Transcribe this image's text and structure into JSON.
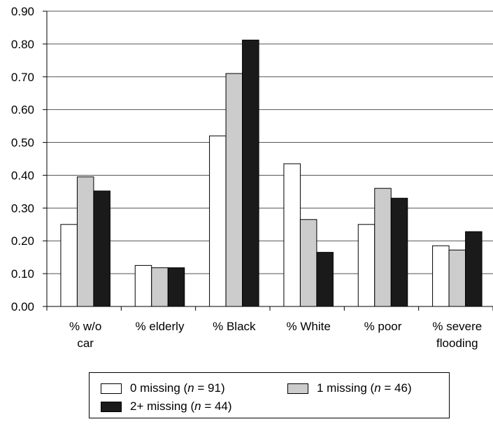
{
  "chart_data": {
    "type": "bar",
    "categories": [
      [
        "% w/o",
        "car"
      ],
      [
        "% elderly"
      ],
      [
        "% Black"
      ],
      [
        "% White"
      ],
      [
        "% poor"
      ],
      [
        "% severe",
        "flooding"
      ]
    ],
    "series": [
      {
        "name": "0 missing (n = 91)",
        "label_pre": "0 missing (",
        "label_n": "n",
        "label_post": " = 91)",
        "color": "#ffffff",
        "values": [
          0.25,
          0.125,
          0.52,
          0.435,
          0.25,
          0.185
        ]
      },
      {
        "name": "1 missing (n = 46)",
        "label_pre": "1 missing (",
        "label_n": "n",
        "label_post": " = 46)",
        "color": "#cccccc",
        "values": [
          0.395,
          0.118,
          0.71,
          0.265,
          0.36,
          0.172
        ]
      },
      {
        "name": "2+ missing (n = 44)",
        "label_pre": "2+ missing (",
        "label_n": "n",
        "label_post": " = 44)",
        "color": "#1a1a1a",
        "values": [
          0.352,
          0.118,
          0.812,
          0.165,
          0.33,
          0.228
        ]
      }
    ],
    "ylim": [
      0,
      0.9
    ],
    "yticks": [
      "0.00",
      "0.10",
      "0.20",
      "0.30",
      "0.40",
      "0.50",
      "0.60",
      "0.70",
      "0.80",
      "0.90"
    ],
    "grid": true,
    "legend_position": "bottom"
  }
}
